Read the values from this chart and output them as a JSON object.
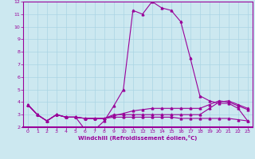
{
  "xlabel": "Windchill (Refroidissement éolien,°C)",
  "x": [
    0,
    1,
    2,
    3,
    4,
    5,
    6,
    7,
    8,
    9,
    10,
    11,
    12,
    13,
    14,
    15,
    16,
    17,
    18,
    19,
    20,
    21,
    22,
    23
  ],
  "line1": [
    3.8,
    3.0,
    2.5,
    3.0,
    2.8,
    2.8,
    1.8,
    1.8,
    2.5,
    3.7,
    5.0,
    11.3,
    11.0,
    12.0,
    11.5,
    11.3,
    10.4,
    7.5,
    4.5,
    4.1,
    3.9,
    3.9,
    3.5,
    2.5
  ],
  "line2": [
    3.8,
    3.0,
    2.5,
    3.0,
    2.8,
    2.8,
    2.7,
    2.7,
    2.7,
    3.0,
    3.0,
    3.0,
    3.0,
    3.0,
    3.0,
    3.0,
    3.0,
    3.0,
    3.0,
    3.5,
    4.0,
    4.1,
    3.8,
    3.5
  ],
  "line3": [
    3.8,
    3.0,
    2.5,
    3.0,
    2.8,
    2.8,
    2.7,
    2.7,
    2.7,
    2.8,
    2.8,
    2.8,
    2.8,
    2.8,
    2.8,
    2.8,
    2.7,
    2.7,
    2.7,
    2.7,
    2.7,
    2.7,
    2.6,
    2.5
  ],
  "line4": [
    3.8,
    3.0,
    2.5,
    3.0,
    2.8,
    2.8,
    2.7,
    2.7,
    2.7,
    2.9,
    3.1,
    3.3,
    3.4,
    3.5,
    3.5,
    3.5,
    3.5,
    3.5,
    3.5,
    3.8,
    4.1,
    4.0,
    3.7,
    3.4
  ],
  "color": "#990099",
  "marker": "^",
  "markersize": 2,
  "linewidth": 0.8,
  "ylim": [
    2,
    12
  ],
  "xlim": [
    -0.5,
    23.5
  ],
  "yticks": [
    2,
    3,
    4,
    5,
    6,
    7,
    8,
    9,
    10,
    11,
    12
  ],
  "xticks": [
    0,
    1,
    2,
    3,
    4,
    5,
    6,
    7,
    8,
    9,
    10,
    11,
    12,
    13,
    14,
    15,
    16,
    17,
    18,
    19,
    20,
    21,
    22,
    23
  ],
  "bg_color": "#cce8f0",
  "grid_color": "#bbddee"
}
